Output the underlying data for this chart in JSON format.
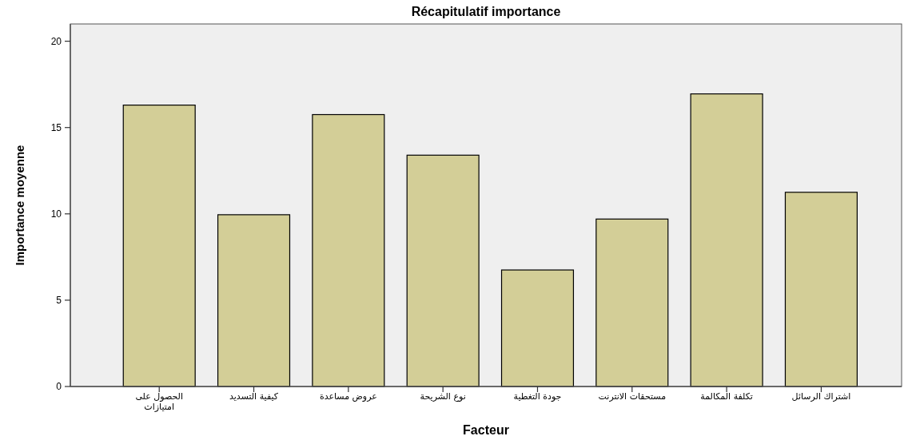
{
  "chart_data": {
    "type": "bar",
    "title": "Récapitulatif importance",
    "xlabel": "Facteur",
    "ylabel": "Importance moyenne",
    "categories": [
      "الحصول على امتيازات",
      "كيفية التسديد",
      "عروض مساعدة",
      "نوع الشريحة",
      "جودة التغطية",
      "مستحقات الانترنت",
      "تكلفة المكالمة",
      "اشتراك الرسائل"
    ],
    "values": [
      16.3,
      9.95,
      15.75,
      13.4,
      6.75,
      9.7,
      16.95,
      11.25
    ],
    "color": "#d3ce97",
    "ylim": [
      0,
      21
    ],
    "yticks": [
      0,
      5,
      10,
      15,
      20
    ],
    "grid": false
  }
}
